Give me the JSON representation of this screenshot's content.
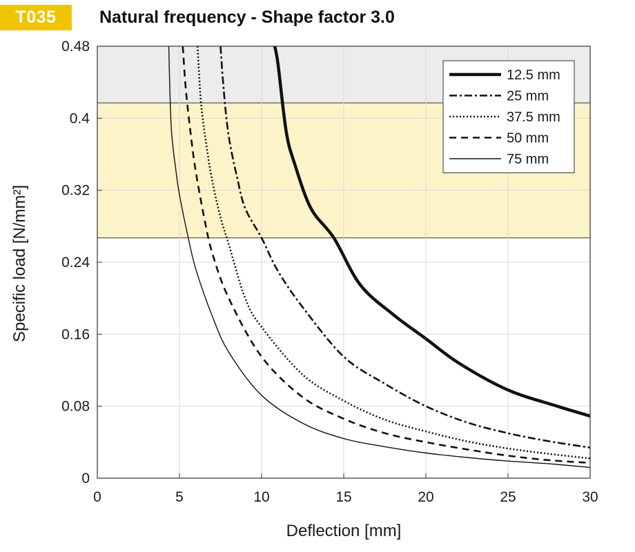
{
  "header": {
    "badge": "T035",
    "title": "Natural frequency - Shape factor 3.0"
  },
  "colors": {
    "badge_bg": "#f0c400",
    "badge_text": "#ffffff",
    "band_upper": "#ececec",
    "band_middle": "#fdf3c9",
    "grid": "#d9d9d9",
    "curve": "#111111"
  },
  "chart_data": {
    "type": "line",
    "xlabel": "Deflection  [mm]",
    "ylabel": "Specific load [N/mm²]",
    "xlim": [
      0,
      30
    ],
    "ylim": [
      0,
      0.48
    ],
    "xticks": [
      0,
      5,
      10,
      15,
      20,
      25,
      30
    ],
    "yticks": [
      0,
      0.08,
      0.16,
      0.24,
      0.32,
      0.4,
      0.48
    ],
    "ytick_labels": [
      "0",
      "0.08",
      "0.16",
      "0.24",
      "0.32",
      "0.4",
      "0.48"
    ],
    "grid": true,
    "legend_position": "top-right",
    "bands": [
      {
        "y_from": 0.417,
        "y_to": 0.48,
        "color": "#ececec"
      },
      {
        "y_from": 0.267,
        "y_to": 0.417,
        "color": "#fdf3c9"
      }
    ],
    "series": [
      {
        "name": "12.5 mm",
        "style": "solid-thick",
        "x": [
          10.8,
          11.0,
          11.5,
          12.0,
          13.0,
          14.4,
          16.0,
          18.0,
          20.0,
          22.0,
          25.0,
          28.0,
          30.0
        ],
        "y": [
          0.48,
          0.46,
          0.385,
          0.35,
          0.3,
          0.267,
          0.215,
          0.182,
          0.155,
          0.128,
          0.098,
          0.08,
          0.069
        ]
      },
      {
        "name": "25 mm",
        "style": "dashdot",
        "x": [
          7.5,
          7.7,
          8.0,
          8.5,
          9.0,
          10.0,
          11.0,
          12.5,
          15.0,
          17.5,
          20.0,
          22.5,
          25.0,
          27.5,
          30.0
        ],
        "y": [
          0.48,
          0.43,
          0.38,
          0.335,
          0.3,
          0.267,
          0.23,
          0.19,
          0.135,
          0.105,
          0.08,
          0.062,
          0.05,
          0.041,
          0.034
        ]
      },
      {
        "name": "37.5 mm",
        "style": "dotted",
        "x": [
          6.1,
          6.3,
          6.6,
          7.0,
          7.5,
          8.0,
          9.0,
          10.0,
          12.5,
          15.0,
          17.5,
          20.0,
          22.5,
          25.0,
          27.5,
          30.0
        ],
        "y": [
          0.48,
          0.42,
          0.375,
          0.33,
          0.29,
          0.26,
          0.2,
          0.168,
          0.115,
          0.086,
          0.065,
          0.052,
          0.041,
          0.033,
          0.027,
          0.022
        ]
      },
      {
        "name": "50 mm",
        "style": "dashed",
        "x": [
          5.2,
          5.4,
          5.7,
          6.0,
          6.5,
          7.0,
          8.0,
          10.0,
          12.5,
          15.0,
          17.5,
          20.0,
          22.5,
          25.0,
          27.5,
          30.0
        ],
        "y": [
          0.48,
          0.43,
          0.38,
          0.34,
          0.29,
          0.25,
          0.2,
          0.135,
          0.09,
          0.066,
          0.05,
          0.04,
          0.032,
          0.025,
          0.02,
          0.017
        ]
      },
      {
        "name": "75 mm",
        "style": "solid-thin",
        "x": [
          4.35,
          4.5,
          4.8,
          5.0,
          5.5,
          6.0,
          7.0,
          8.0,
          10.0,
          12.5,
          15.0,
          17.5,
          20.0,
          22.5,
          25.0,
          27.5,
          30.0
        ],
        "y": [
          0.48,
          0.39,
          0.34,
          0.315,
          0.27,
          0.232,
          0.18,
          0.14,
          0.092,
          0.061,
          0.044,
          0.035,
          0.028,
          0.023,
          0.019,
          0.016,
          0.012
        ]
      }
    ]
  }
}
